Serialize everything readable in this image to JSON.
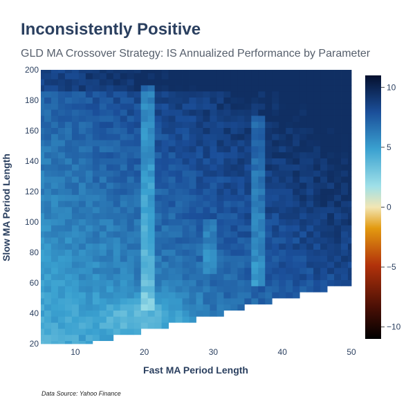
{
  "chart_data": {
    "type": "heatmap",
    "title": "Inconsistently Positive",
    "subtitle": "GLD MA Crossover Strategy: IS Annualized Performance by Parameter",
    "xlabel": "Fast MA Period Length",
    "ylabel": "Slow MA Period Length",
    "source": "Data Source: Yahoo Finance",
    "x_range": [
      5,
      50
    ],
    "y_range": [
      20,
      200
    ],
    "x_step": 1,
    "y_step": 4,
    "x_ticks": [
      "10",
      "20",
      "30",
      "40",
      "50"
    ],
    "y_ticks": [
      "20",
      "40",
      "60",
      "80",
      "100",
      "120",
      "140",
      "160",
      "180",
      "200"
    ],
    "colorbar": {
      "min": -11,
      "max": 11,
      "ticks": [
        "10",
        "5",
        "0",
        "−5",
        "−10"
      ],
      "tick_values": [
        10,
        5,
        0,
        -5,
        -10
      ],
      "colorscale": [
        [
          0.0,
          "#000000"
        ],
        [
          0.12,
          "#4a0f05"
        ],
        [
          0.28,
          "#b2320b"
        ],
        [
          0.42,
          "#e39a10"
        ],
        [
          0.5,
          "#f2e6b4"
        ],
        [
          0.58,
          "#9fe0e8"
        ],
        [
          0.72,
          "#3aa1d0"
        ],
        [
          0.86,
          "#1b4f9a"
        ],
        [
          1.0,
          "#05102e"
        ]
      ]
    },
    "mask": "cells with fast period >= slow period are empty",
    "value_range_shown": [
      0.5,
      9.5
    ],
    "pattern": "values increase toward high fast / high slow periods (~8-9), lower near fast 15-25 / slow 25-60 (~1-3), light vertical band near fast 21 and fast 36-37 (~3-4)"
  },
  "colors": {
    "title": "#2a3f5f",
    "gridline": "#e8e8e8"
  }
}
